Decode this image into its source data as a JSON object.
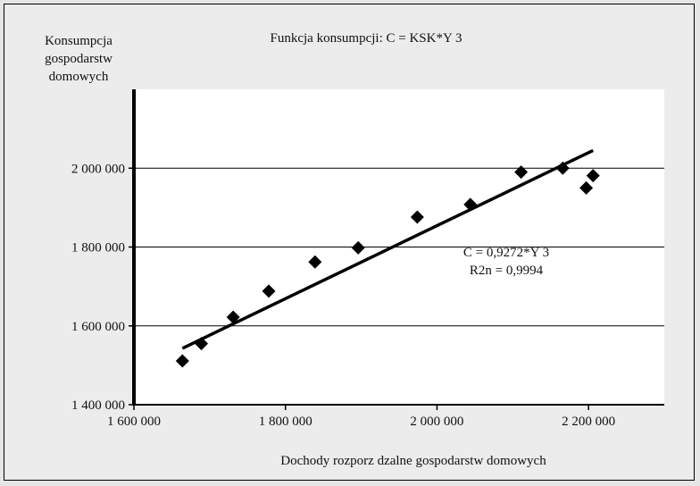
{
  "chart_data": {
    "type": "scatter",
    "title": "Funkcja konsumpcji: C = KSK*Y  3",
    "ylabel_lines": [
      "Konsumpcja",
      "gospodarstw",
      "domowych"
    ],
    "xlabel": "Dochody rozporz  dzalne gospodarstw domowych",
    "xlim": [
      1600000,
      2300000
    ],
    "ylim": [
      1400000,
      2200000
    ],
    "x_ticks": [
      1600000,
      1800000,
      2000000,
      2200000
    ],
    "x_tick_labels": [
      "1 600 000",
      "1 800 000",
      "2 000 000",
      "2 200 000"
    ],
    "y_ticks": [
      1400000,
      1600000,
      1800000,
      2000000
    ],
    "y_tick_labels": [
      "1 400 000",
      "1 600 000",
      "1 800 000",
      "2 000 000"
    ],
    "grid": "horizontal",
    "points": [
      {
        "x": 1664000,
        "y": 1511000
      },
      {
        "x": 1689000,
        "y": 1555000
      },
      {
        "x": 1731000,
        "y": 1622000
      },
      {
        "x": 1778000,
        "y": 1688000
      },
      {
        "x": 1839000,
        "y": 1762000
      },
      {
        "x": 1896000,
        "y": 1798000
      },
      {
        "x": 1974000,
        "y": 1876000
      },
      {
        "x": 2044000,
        "y": 1908000
      },
      {
        "x": 2111000,
        "y": 1990000
      },
      {
        "x": 2166000,
        "y": 2000000
      },
      {
        "x": 2197000,
        "y": 1950000
      },
      {
        "x": 2206000,
        "y": 1981000
      }
    ],
    "trendline": {
      "x": [
        1664000,
        2206000
      ],
      "y": [
        1543000,
        2045000
      ]
    },
    "annotation": [
      "C = 0,9272*Y  3",
      "R2n = 0,9994"
    ],
    "colors": {
      "marker": "#000000",
      "line": "#000000",
      "plot_bg": "#ffffff",
      "page_bg": "#ececec"
    }
  }
}
